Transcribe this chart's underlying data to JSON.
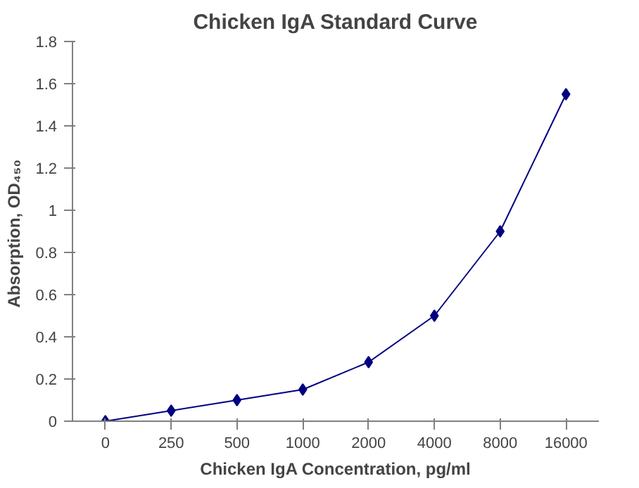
{
  "chart_data": {
    "type": "line",
    "title": "Chicken IgA Standard Curve",
    "xlabel": "Chicken IgA Concentration, pg/ml",
    "ylabel": "Absorption,  OD₄₅₀",
    "categories": [
      "0",
      "250",
      "500",
      "1000",
      "2000",
      "4000",
      "8000",
      "16000"
    ],
    "series": [
      {
        "color": "#000080",
        "values": [
          0,
          0.05,
          0.1,
          0.15,
          0.28,
          0.5,
          0.9,
          1.55
        ]
      }
    ],
    "ylim": [
      0,
      1.8
    ],
    "yticks": [
      0,
      0.2,
      0.4,
      0.6,
      0.8,
      1,
      1.2,
      1.4,
      1.6,
      1.8
    ],
    "marker": "diamond",
    "line_style": "solid",
    "grid": false
  }
}
